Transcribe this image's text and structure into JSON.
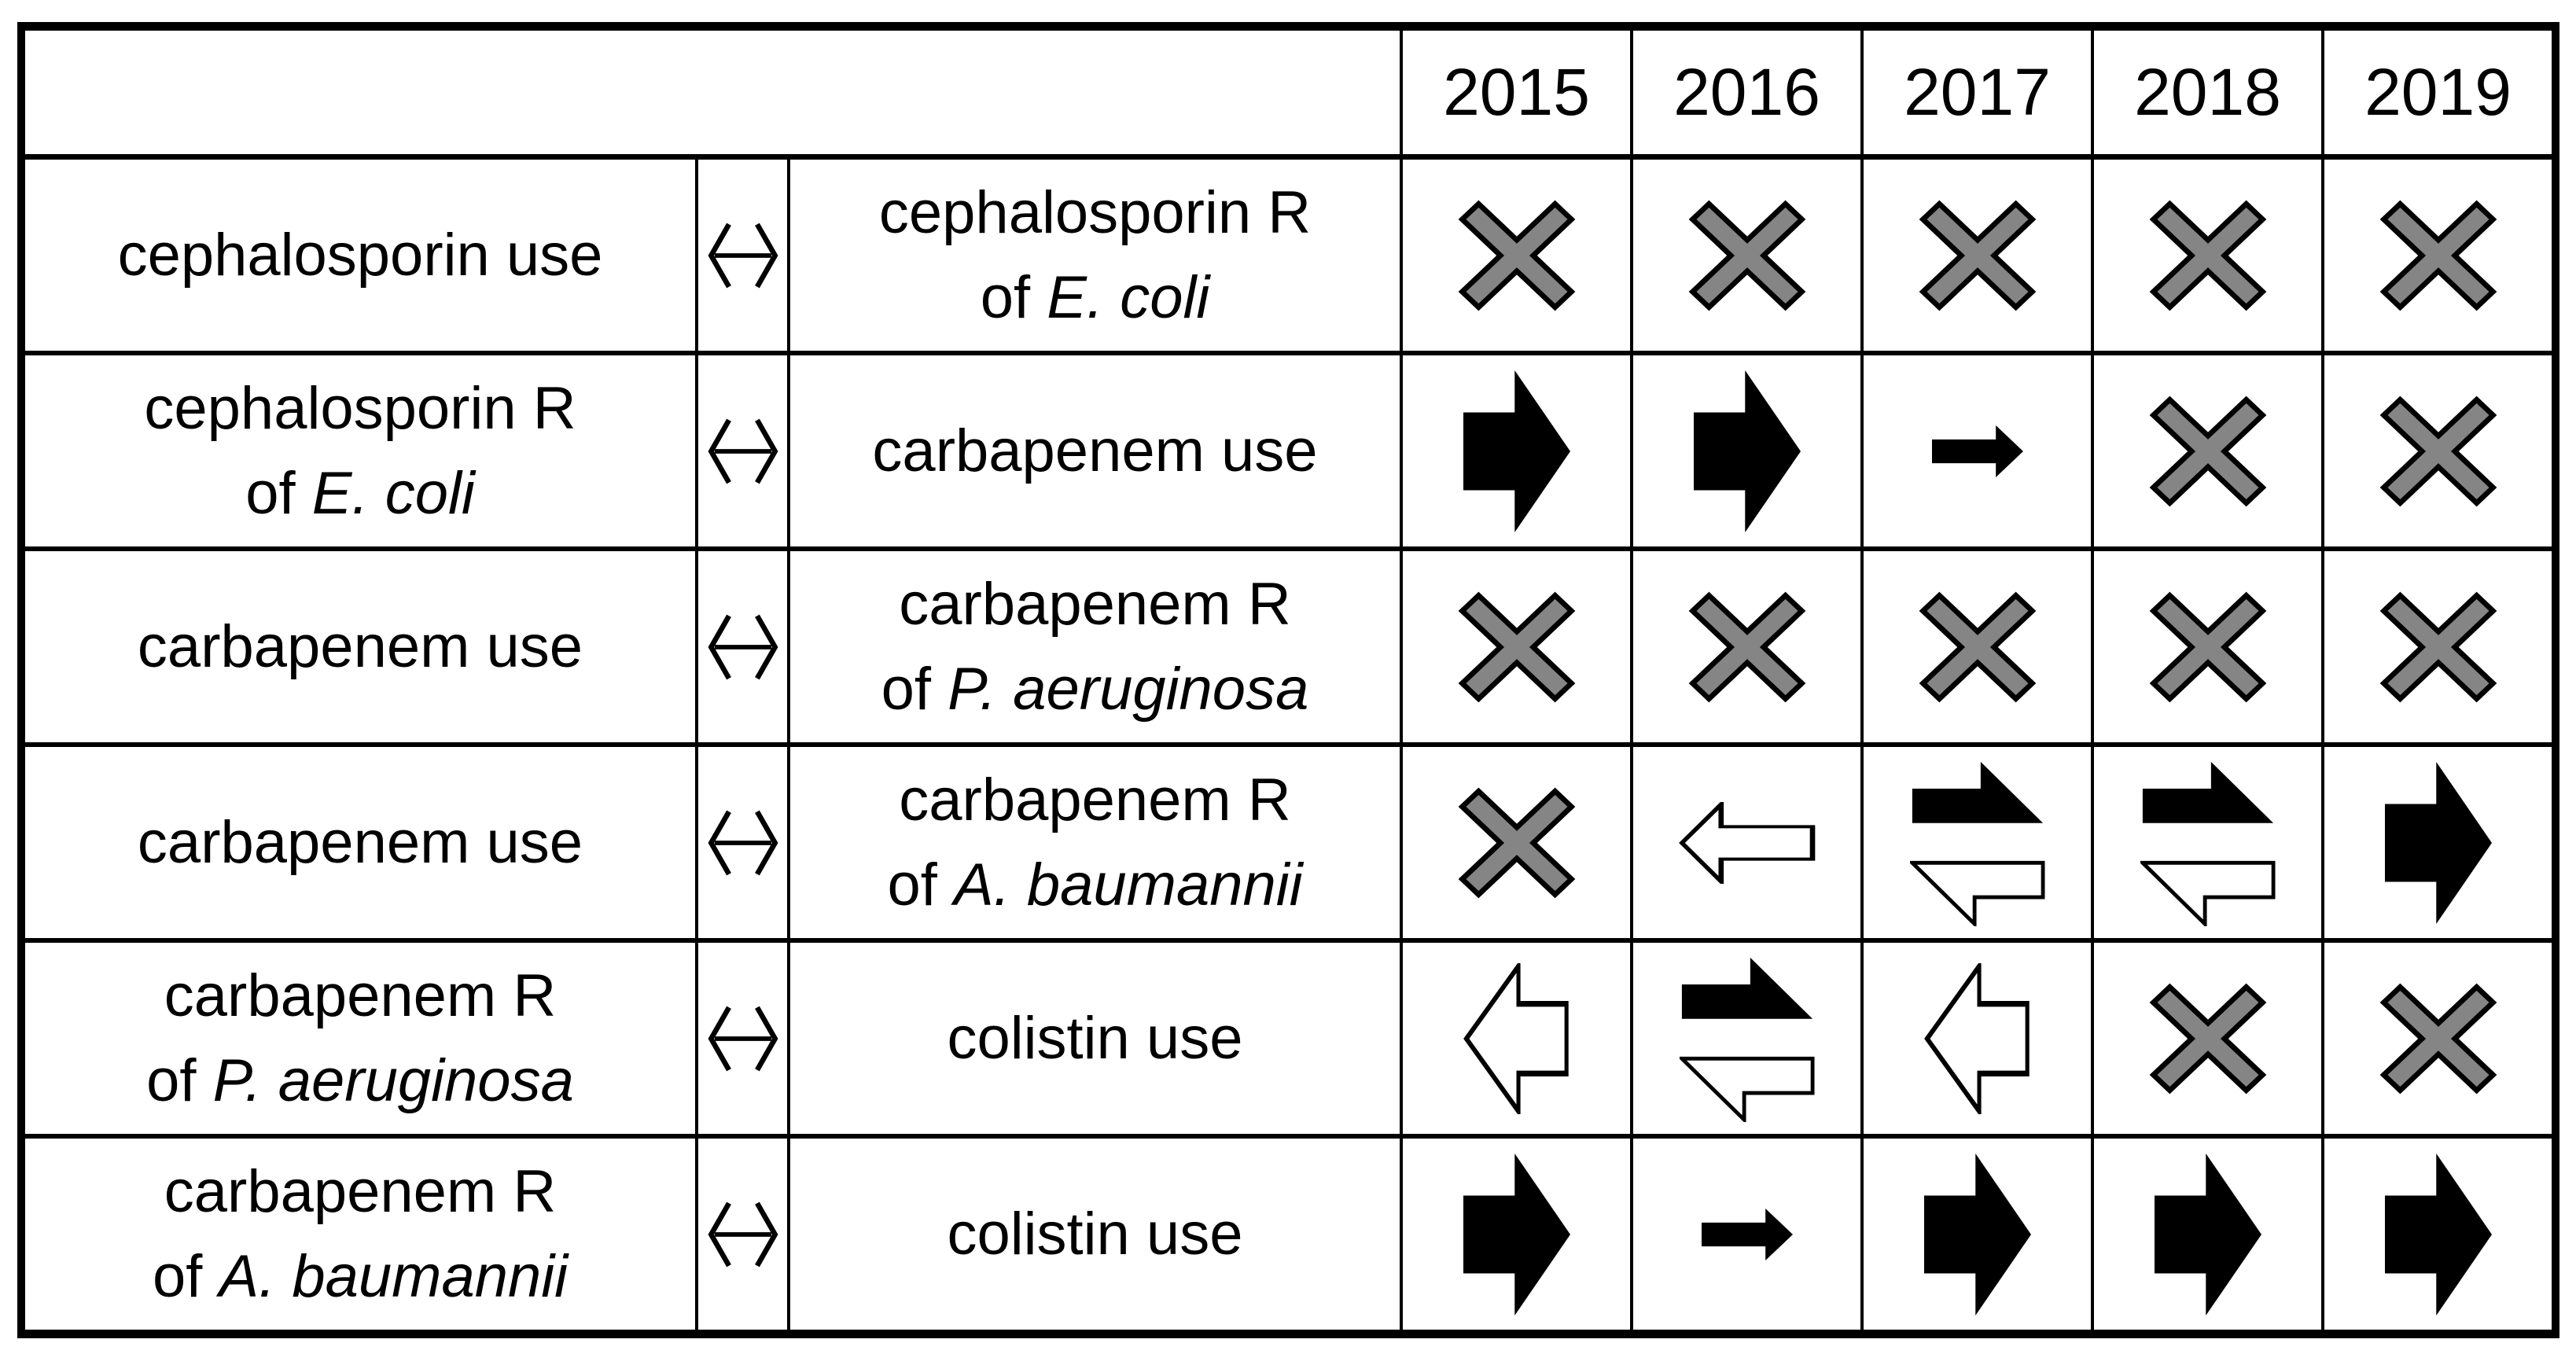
{
  "table_title": "",
  "header": {
    "corner": "",
    "years": [
      "2015",
      "2016",
      "2017",
      "2018",
      "2019"
    ]
  },
  "relation_symbol": "↔",
  "rows": [
    {
      "left": {
        "lines": [
          {
            "segs": [
              {
                "t": "cephalosporin use",
                "i": false
              }
            ]
          }
        ]
      },
      "relation": "↔",
      "right": {
        "lines": [
          {
            "segs": [
              {
                "t": "cephalosporin R",
                "i": false
              }
            ]
          },
          {
            "segs": [
              {
                "t": "of ",
                "i": false
              },
              {
                "t": "E. coli",
                "i": true
              }
            ]
          }
        ]
      },
      "cells": [
        "cross",
        "cross",
        "cross",
        "cross",
        "cross"
      ]
    },
    {
      "left": {
        "lines": [
          {
            "segs": [
              {
                "t": "cephalosporin R",
                "i": false
              }
            ]
          },
          {
            "segs": [
              {
                "t": "of ",
                "i": false
              },
              {
                "t": "E. coli",
                "i": true
              }
            ]
          }
        ]
      },
      "relation": "↔",
      "right": {
        "lines": [
          {
            "segs": [
              {
                "t": "carbapenem use",
                "i": false
              }
            ]
          }
        ]
      },
      "cells": [
        "arrow-right-large",
        "arrow-right-large",
        "arrow-right-small",
        "cross",
        "cross"
      ]
    },
    {
      "left": {
        "lines": [
          {
            "segs": [
              {
                "t": "carbapenem use",
                "i": false
              }
            ]
          }
        ]
      },
      "relation": "↔",
      "right": {
        "lines": [
          {
            "segs": [
              {
                "t": "carbapenem R",
                "i": false
              }
            ]
          },
          {
            "segs": [
              {
                "t": "of ",
                "i": false
              },
              {
                "t": "P. aeruginosa",
                "i": true
              }
            ]
          }
        ]
      },
      "cells": [
        "cross",
        "cross",
        "cross",
        "cross",
        "cross"
      ]
    },
    {
      "left": {
        "lines": [
          {
            "segs": [
              {
                "t": "carbapenem use",
                "i": false
              }
            ]
          }
        ]
      },
      "relation": "↔",
      "right": {
        "lines": [
          {
            "segs": [
              {
                "t": "carbapenem R",
                "i": false
              }
            ]
          },
          {
            "segs": [
              {
                "t": "of ",
                "i": false
              },
              {
                "t": "A. baumannii",
                "i": true
              }
            ]
          }
        ]
      },
      "cells": [
        "cross",
        "arrow-left-medium",
        "bidirectional",
        "bidirectional",
        "arrow-right-large"
      ]
    },
    {
      "left": {
        "lines": [
          {
            "segs": [
              {
                "t": "carbapenem R",
                "i": false
              }
            ]
          },
          {
            "segs": [
              {
                "t": "of ",
                "i": false
              },
              {
                "t": "P. aeruginosa",
                "i": true
              }
            ]
          }
        ]
      },
      "relation": "↔",
      "right": {
        "lines": [
          {
            "segs": [
              {
                "t": "colistin use",
                "i": false
              }
            ]
          }
        ]
      },
      "cells": [
        "arrow-left-large",
        "bidirectional",
        "arrow-left-large",
        "cross",
        "cross"
      ]
    },
    {
      "left": {
        "lines": [
          {
            "segs": [
              {
                "t": "carbapenem R",
                "i": false
              }
            ]
          },
          {
            "segs": [
              {
                "t": "of ",
                "i": false
              },
              {
                "t": "A. baumannii",
                "i": true
              }
            ]
          }
        ]
      },
      "relation": "↔",
      "right": {
        "lines": [
          {
            "segs": [
              {
                "t": "colistin use",
                "i": false
              }
            ]
          }
        ]
      },
      "cells": [
        "arrow-right-large",
        "arrow-right-small",
        "arrow-right-large",
        "arrow-right-large",
        "arrow-right-large"
      ]
    }
  ],
  "symbol_legend": {
    "cross": "gray cross - no significant association",
    "arrow-right-large": "large black rightwards arrow",
    "arrow-right-small": "small black rightwards arrow",
    "arrow-left-large": "large white (outline) leftwards arrow",
    "arrow-left-medium": "medium white (outline) leftwards arrow",
    "bidirectional": "black rightwards half-arrow over white leftwards half-arrow"
  },
  "colors": {
    "symbol_gray": "#858585",
    "symbol_black": "#000000",
    "symbol_white": "#ffffff",
    "line": "#000000",
    "background": "#ffffff",
    "text": "#000000"
  },
  "chart_data": {
    "type": "table",
    "columns": [
      "relationship_left",
      "direction",
      "relationship_right",
      "2015",
      "2016",
      "2017",
      "2018",
      "2019"
    ],
    "rows": [
      [
        "cephalosporin use",
        "↔",
        "cephalosporin R of E. coli",
        "no association",
        "no association",
        "no association",
        "no association",
        "no association"
      ],
      [
        "cephalosporin R of E. coli",
        "↔",
        "carbapenem use",
        "black right arrow (large)",
        "black right arrow (large)",
        "black right arrow (small)",
        "no association",
        "no association"
      ],
      [
        "carbapenem use",
        "↔",
        "carbapenem R of P. aeruginosa",
        "no association",
        "no association",
        "no association",
        "no association",
        "no association"
      ],
      [
        "carbapenem use",
        "↔",
        "carbapenem R of A. baumannii",
        "no association",
        "white left arrow (medium)",
        "bidirectional half-arrows",
        "bidirectional half-arrows",
        "black right arrow (large)"
      ],
      [
        "carbapenem R of P. aeruginosa",
        "↔",
        "colistin use",
        "white left arrow (large)",
        "bidirectional half-arrows",
        "white left arrow (large)",
        "no association",
        "no association"
      ],
      [
        "carbapenem R of A. baumannii",
        "↔",
        "colistin use",
        "black right arrow (large)",
        "black right arrow (small)",
        "black right arrow (large)",
        "black right arrow (large)",
        "black right arrow (large)"
      ]
    ],
    "title": "",
    "legend_position": "none",
    "grid": true
  }
}
